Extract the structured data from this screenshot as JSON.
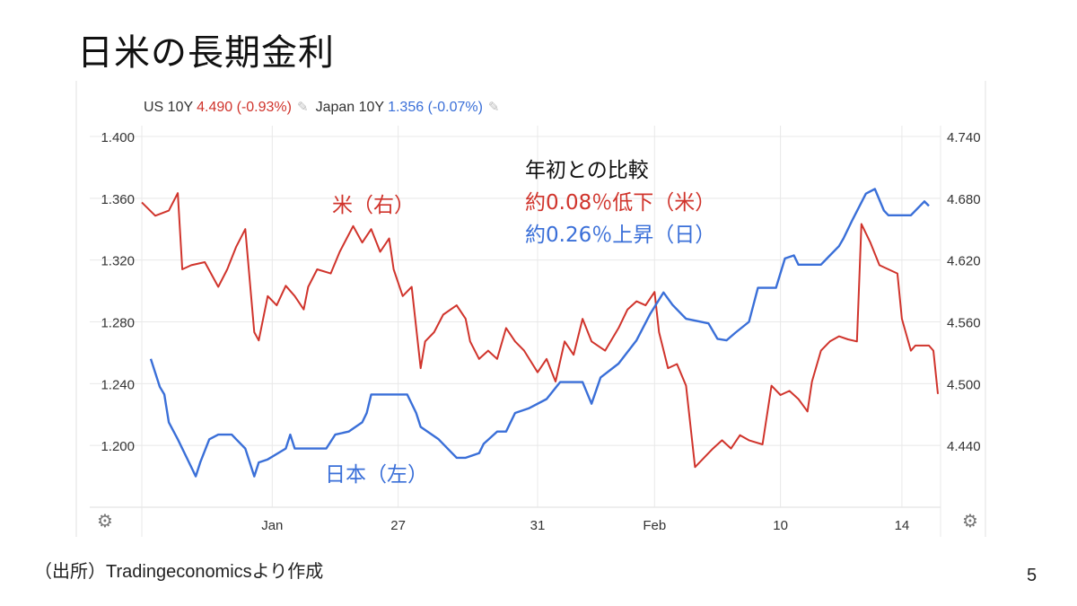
{
  "slide": {
    "title": "日米の長期金利",
    "source": "（出所）Tradingeconomicsより作成",
    "page_number": "5"
  },
  "legend": {
    "us_label": "US 10Y",
    "us_value": "4.490 (-0.93%)",
    "jp_label": "Japan 10Y",
    "jp_value": "1.356 (-0.07%)",
    "edit_icon": "pencil-icon"
  },
  "annotations": {
    "us_series": "米（右）",
    "jp_series": "日本（左）",
    "compare_title": "年初との比較",
    "us_change": "約0.08％低下（米）",
    "jp_change": "約0.26％上昇（日）"
  },
  "icons": {
    "settings": "gear-icon"
  },
  "chart_data": {
    "type": "line",
    "colors": {
      "us": "#d0342c",
      "jp": "#3a6fd8",
      "grid": "#e8e8e8"
    },
    "grid": true,
    "x_ticks": [
      {
        "label": "Jan",
        "x": 29
      },
      {
        "label": "27",
        "x": 57
      },
      {
        "label": "31",
        "x": 88
      },
      {
        "label": "Feb",
        "x": 114
      },
      {
        "label": "10",
        "x": 142
      },
      {
        "label": "14",
        "x": 169
      }
    ],
    "xlim": [
      0,
      177
    ],
    "y_left": {
      "ticks": [
        "1.400",
        "1.360",
        "1.320",
        "1.280",
        "1.240",
        "1.200"
      ],
      "ylim": [
        1.16,
        1.4
      ]
    },
    "y_right": {
      "ticks": [
        "4.740",
        "4.680",
        "4.620",
        "4.560",
        "4.500",
        "4.440"
      ],
      "ylim": [
        4.38,
        4.74
      ]
    },
    "series": [
      {
        "name": "US 10Y",
        "axis": "right",
        "points": [
          [
            0,
            4.676
          ],
          [
            3,
            4.663
          ],
          [
            6,
            4.668
          ],
          [
            8,
            4.685
          ],
          [
            9,
            4.611
          ],
          [
            11,
            4.615
          ],
          [
            14,
            4.618
          ],
          [
            17,
            4.594
          ],
          [
            19,
            4.611
          ],
          [
            21,
            4.633
          ],
          [
            23,
            4.65
          ],
          [
            25,
            4.55
          ],
          [
            26,
            4.542
          ],
          [
            28,
            4.585
          ],
          [
            30,
            4.576
          ],
          [
            32,
            4.595
          ],
          [
            34,
            4.585
          ],
          [
            36,
            4.572
          ],
          [
            37,
            4.594
          ],
          [
            39,
            4.611
          ],
          [
            42,
            4.607
          ],
          [
            44,
            4.628
          ],
          [
            47,
            4.653
          ],
          [
            49,
            4.637
          ],
          [
            51,
            4.65
          ],
          [
            53,
            4.628
          ],
          [
            55,
            4.641
          ],
          [
            56,
            4.611
          ],
          [
            58,
            4.585
          ],
          [
            60,
            4.594
          ],
          [
            62,
            4.515
          ],
          [
            63,
            4.541
          ],
          [
            65,
            4.55
          ],
          [
            67,
            4.567
          ],
          [
            70,
            4.576
          ],
          [
            72,
            4.563
          ],
          [
            73,
            4.541
          ],
          [
            75,
            4.524
          ],
          [
            77,
            4.532
          ],
          [
            79,
            4.524
          ],
          [
            81,
            4.554
          ],
          [
            83,
            4.541
          ],
          [
            85,
            4.532
          ],
          [
            88,
            4.511
          ],
          [
            90,
            4.524
          ],
          [
            92,
            4.502
          ],
          [
            94,
            4.541
          ],
          [
            96,
            4.528
          ],
          [
            98,
            4.563
          ],
          [
            100,
            4.541
          ],
          [
            103,
            4.532
          ],
          [
            106,
            4.554
          ],
          [
            108,
            4.572
          ],
          [
            110,
            4.58
          ],
          [
            112,
            4.576
          ],
          [
            114,
            4.589
          ],
          [
            115,
            4.55
          ],
          [
            117,
            4.515
          ],
          [
            119,
            4.519
          ],
          [
            121,
            4.498
          ],
          [
            123,
            4.419
          ],
          [
            125,
            4.428
          ],
          [
            127,
            4.437
          ],
          [
            129,
            4.445
          ],
          [
            131,
            4.437
          ],
          [
            133,
            4.45
          ],
          [
            135,
            4.445
          ],
          [
            138,
            4.441
          ],
          [
            140,
            4.498
          ],
          [
            142,
            4.489
          ],
          [
            144,
            4.493
          ],
          [
            146,
            4.485
          ],
          [
            148,
            4.473
          ],
          [
            149,
            4.502
          ],
          [
            151,
            4.532
          ],
          [
            153,
            4.541
          ],
          [
            155,
            4.546
          ],
          [
            157,
            4.543
          ],
          [
            159,
            4.541
          ],
          [
            160,
            4.655
          ],
          [
            162,
            4.637
          ],
          [
            164,
            4.615
          ],
          [
            166,
            4.611
          ],
          [
            168,
            4.607
          ],
          [
            169,
            4.563
          ],
          [
            171,
            4.532
          ],
          [
            172,
            4.537
          ],
          [
            175,
            4.537
          ],
          [
            176,
            4.532
          ],
          [
            177,
            4.49
          ]
        ]
      },
      {
        "name": "Japan 10Y",
        "axis": "left",
        "points": [
          [
            2,
            1.256
          ],
          [
            4,
            1.238
          ],
          [
            5,
            1.233
          ],
          [
            6,
            1.215
          ],
          [
            8,
            1.204
          ],
          [
            10,
            1.192
          ],
          [
            12,
            1.18
          ],
          [
            13,
            1.189
          ],
          [
            15,
            1.204
          ],
          [
            17,
            1.207
          ],
          [
            20,
            1.207
          ],
          [
            21,
            1.204
          ],
          [
            23,
            1.198
          ],
          [
            25,
            1.18
          ],
          [
            26,
            1.189
          ],
          [
            28,
            1.191
          ],
          [
            32,
            1.198
          ],
          [
            33,
            1.207
          ],
          [
            34,
            1.198
          ],
          [
            37,
            1.198
          ],
          [
            41,
            1.198
          ],
          [
            43,
            1.207
          ],
          [
            46,
            1.209
          ],
          [
            49,
            1.215
          ],
          [
            50,
            1.221
          ],
          [
            51,
            1.233
          ],
          [
            54,
            1.233
          ],
          [
            59,
            1.233
          ],
          [
            61,
            1.221
          ],
          [
            62,
            1.212
          ],
          [
            66,
            1.204
          ],
          [
            69,
            1.195
          ],
          [
            70,
            1.192
          ],
          [
            72,
            1.192
          ],
          [
            75,
            1.195
          ],
          [
            76,
            1.201
          ],
          [
            79,
            1.209
          ],
          [
            81,
            1.209
          ],
          [
            83,
            1.221
          ],
          [
            86,
            1.224
          ],
          [
            90,
            1.23
          ],
          [
            93,
            1.241
          ],
          [
            98,
            1.241
          ],
          [
            100,
            1.227
          ],
          [
            102,
            1.244
          ],
          [
            106,
            1.253
          ],
          [
            110,
            1.268
          ],
          [
            113,
            1.285
          ],
          [
            116,
            1.299
          ],
          [
            118,
            1.291
          ],
          [
            121,
            1.282
          ],
          [
            126,
            1.279
          ],
          [
            128,
            1.269
          ],
          [
            130,
            1.268
          ],
          [
            132,
            1.273
          ],
          [
            135,
            1.28
          ],
          [
            137,
            1.302
          ],
          [
            141,
            1.302
          ],
          [
            143,
            1.321
          ],
          [
            145,
            1.323
          ],
          [
            146,
            1.317
          ],
          [
            151,
            1.317
          ],
          [
            153,
            1.323
          ],
          [
            155,
            1.329
          ],
          [
            156,
            1.334
          ],
          [
            158,
            1.346
          ],
          [
            161,
            1.363
          ],
          [
            163,
            1.366
          ],
          [
            165,
            1.352
          ],
          [
            166,
            1.349
          ],
          [
            169,
            1.349
          ],
          [
            171,
            1.349
          ],
          [
            173,
            1.355
          ],
          [
            174,
            1.358
          ],
          [
            175,
            1.355
          ]
        ]
      }
    ]
  }
}
